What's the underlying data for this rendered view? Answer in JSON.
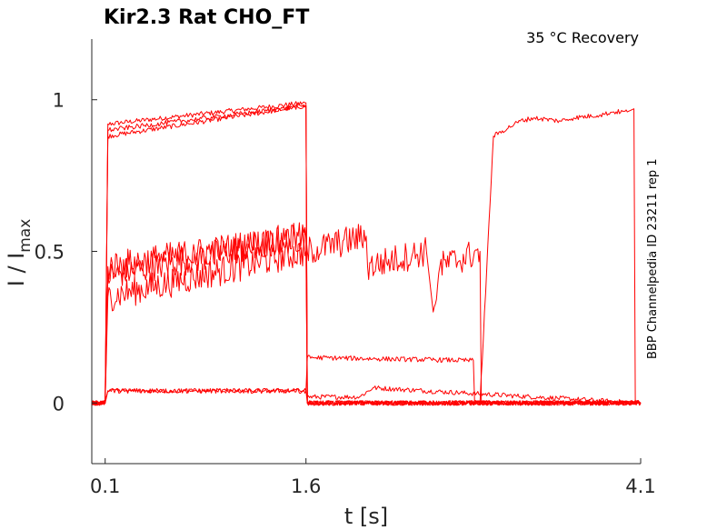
{
  "chart_data": {
    "type": "line",
    "title": "Kir2.3  Rat  CHO_FT",
    "annotation": "35 °C  Recovery",
    "side_label": "BBP Channelpedia ID 23211 rep 1",
    "xlabel": "t [s]",
    "ylabel_main": "I / I",
    "ylabel_sub": "max",
    "xlim": [
      0.0,
      4.1
    ],
    "ylim": [
      -0.2,
      1.2
    ],
    "x_ticks": [
      0.1,
      1.6,
      4.1
    ],
    "x_tick_labels": [
      "0.1",
      "1.6",
      "4.1"
    ],
    "y_ticks": [
      0,
      0.5,
      1
    ],
    "y_tick_labels": [
      "0",
      "0.5",
      "1"
    ],
    "grid": false,
    "series_color": "#ff0000",
    "series": [
      {
        "x": [
          0,
          0.1,
          0.12,
          1.6,
          1.61,
          4.1
        ],
        "y": [
          0,
          0,
          0.92,
          0.99,
          0,
          0
        ]
      },
      {
        "x": [
          0,
          0.1,
          0.12,
          1.6,
          1.61,
          2.0,
          2.1,
          4.1
        ],
        "y": [
          0,
          0,
          0.88,
          0.98,
          0.02,
          0.02,
          0.05,
          0
        ]
      },
      {
        "x": [
          0,
          0.1,
          0.12,
          1.6,
          1.61,
          4.1
        ],
        "y": [
          0,
          0,
          0.42,
          0.55,
          0,
          0
        ]
      },
      {
        "x": [
          0,
          0.1,
          0.12,
          1.6,
          1.61,
          4.1
        ],
        "y": [
          0,
          0,
          0.35,
          0.5,
          0,
          0
        ]
      },
      {
        "x": [
          0,
          0.1,
          0.12,
          1.6,
          1.61,
          4.1
        ],
        "y": [
          0,
          0,
          0.04,
          0.04,
          0,
          0
        ]
      },
      {
        "x": [
          0,
          0.1,
          0.12,
          1.6,
          1.61,
          2.85,
          2.86,
          4.1
        ],
        "y": [
          0,
          0,
          0.04,
          0.04,
          0.15,
          0.14,
          0,
          0
        ]
      },
      {
        "x": [
          0,
          0.1,
          0.12,
          1.6,
          1.61,
          2.05,
          2.06,
          2.5,
          2.55,
          2.6,
          2.9,
          2.91,
          4.1
        ],
        "y": [
          0,
          0,
          0.45,
          0.55,
          0.5,
          0.55,
          0.45,
          0.5,
          0.3,
          0.45,
          0.5,
          0,
          0
        ]
      },
      {
        "x": [
          0,
          0.1,
          0.12,
          1.6,
          1.61,
          2.9,
          3.0,
          3.2,
          3.3,
          3.5,
          3.6,
          3.8,
          3.9,
          4.0,
          4.05,
          4.06,
          4.1
        ],
        "y": [
          0,
          0,
          0.9,
          0.98,
          0,
          0,
          0.88,
          0.93,
          0.94,
          0.93,
          0.94,
          0.95,
          0.96,
          0.96,
          0.97,
          0,
          0
        ]
      }
    ]
  }
}
